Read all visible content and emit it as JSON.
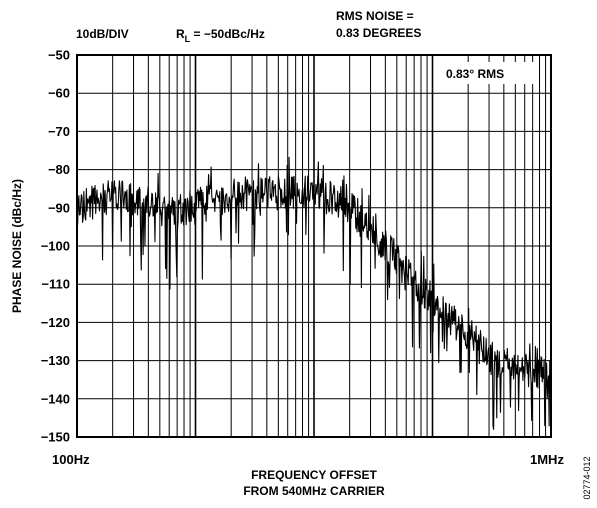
{
  "chart_data": {
    "type": "line",
    "title": "",
    "header": {
      "scale": "10dB/DIV",
      "rl_prefix": "R",
      "rl_sub": "L",
      "rl_value": " = −50dBc/Hz",
      "rms_line1": "RMS NOISE =",
      "rms_line2": "0.83 DEGREES"
    },
    "annotation": "0.83° RMS",
    "xlabel_line1": "FREQUENCY OFFSET",
    "xlabel_line2": "FROM 540MHz CARRIER",
    "ylabel": "PHASE NOISE (dBc/Hz)",
    "xscale": "log",
    "xlim": [
      100,
      1000000
    ],
    "ylim": [
      -150,
      -50
    ],
    "x_tick_labels": [
      "100Hz",
      "1MHz"
    ],
    "y_ticks": [
      -50,
      -60,
      -70,
      -80,
      -90,
      -100,
      -110,
      -120,
      -130,
      -140,
      -150
    ],
    "y_tick_labels": [
      "−50",
      "−60",
      "−70",
      "−80",
      "−90",
      "−100",
      "−110",
      "−120",
      "−130",
      "−140",
      "−150"
    ],
    "grid": true,
    "series": [
      {
        "x": [
          100,
          150,
          200,
          300,
          400,
          500,
          700,
          1000,
          1500,
          2000,
          3000,
          5000,
          7000,
          10000,
          15000,
          20000,
          30000,
          40000,
          50000,
          60000,
          70000,
          80000,
          100000,
          120000,
          150000,
          200000,
          250000,
          300000,
          400000,
          500000,
          700000,
          1000000
        ],
        "values": [
          -90,
          -88,
          -87,
          -88,
          -89,
          -90,
          -92,
          -89,
          -88,
          -87,
          -87,
          -86,
          -86,
          -86,
          -88,
          -90,
          -96,
          -100,
          -103,
          -107,
          -109,
          -111,
          -114,
          -116,
          -120,
          -123,
          -126,
          -129,
          -131,
          -132,
          -133,
          -133
        ]
      }
    ]
  },
  "figure_code": "02774-012"
}
